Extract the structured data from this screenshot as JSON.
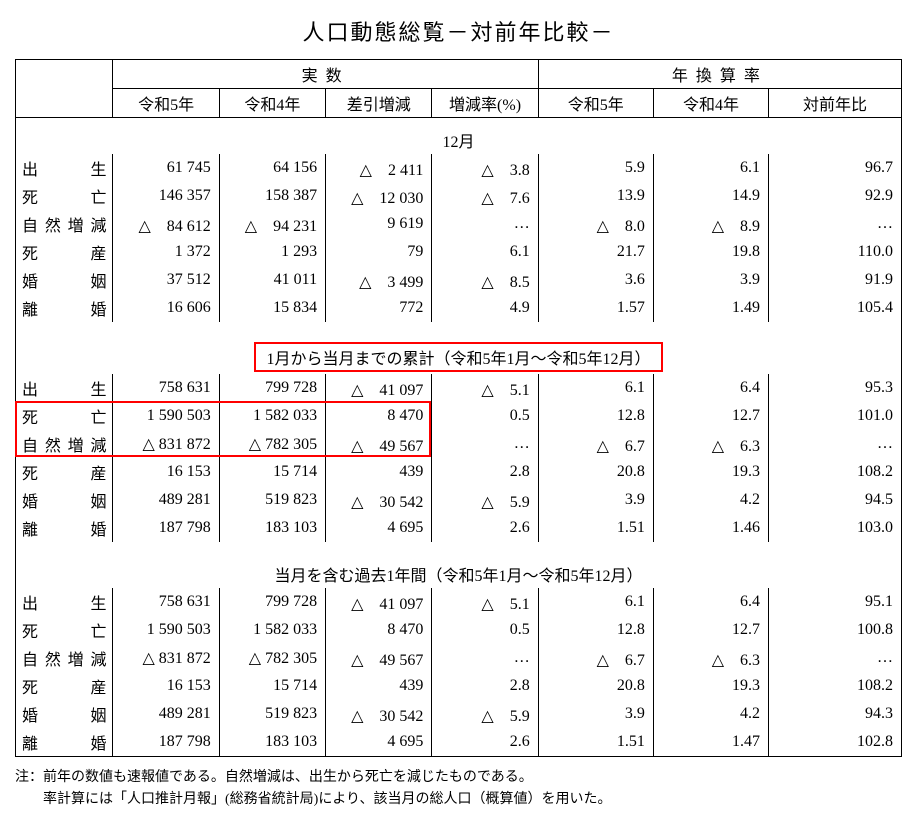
{
  "title": "人口動態総覧－対前年比較－",
  "headers": {
    "group_actual": "実数",
    "group_rate": "年換算率",
    "r5": "令和5年",
    "r4": "令和4年",
    "diff": "差引増減",
    "pct": "増減率(%)",
    "yoy": "対前年比"
  },
  "sections": [
    {
      "title": "12月",
      "rows": [
        {
          "label": "出生",
          "r5": "61 745",
          "r4": "64 156",
          "diff": "△　2 411",
          "pct": "△　3.8",
          "rate5": "5.9",
          "rate4": "6.1",
          "yoy": "96.7"
        },
        {
          "label": "死亡",
          "r5": "146 357",
          "r4": "158 387",
          "diff": "△　12 030",
          "pct": "△　7.6",
          "rate5": "13.9",
          "rate4": "14.9",
          "yoy": "92.9"
        },
        {
          "label": "自然増減",
          "r5": "△　84 612",
          "r4": "△　94 231",
          "diff": "9 619",
          "pct": "…",
          "rate5": "△　8.0",
          "rate4": "△　8.9",
          "yoy": "…"
        },
        {
          "label": "死産",
          "r5": "1 372",
          "r4": "1 293",
          "diff": "79",
          "pct": "6.1",
          "rate5": "21.7",
          "rate4": "19.8",
          "yoy": "110.0"
        },
        {
          "label": "婚姻",
          "r5": "37 512",
          "r4": "41 011",
          "diff": "△　3 499",
          "pct": "△　8.5",
          "rate5": "3.6",
          "rate4": "3.9",
          "yoy": "91.9"
        },
        {
          "label": "離婚",
          "r5": "16 606",
          "r4": "15 834",
          "diff": "772",
          "pct": "4.9",
          "rate5": "1.57",
          "rate4": "1.49",
          "yoy": "105.4"
        }
      ]
    },
    {
      "title": "1月から当月までの累計（令和5年1月～令和5年12月）",
      "highlight_title": true,
      "rows": [
        {
          "label": "出生",
          "r5": "758 631",
          "r4": "799 728",
          "diff": "△　41 097",
          "pct": "△　5.1",
          "rate5": "6.1",
          "rate4": "6.4",
          "yoy": "95.3"
        },
        {
          "label": "死亡",
          "r5": "1 590 503",
          "r4": "1 582 033",
          "diff": "8 470",
          "pct": "0.5",
          "rate5": "12.8",
          "rate4": "12.7",
          "yoy": "101.0",
          "highlight_row": true
        },
        {
          "label": "自然増減",
          "r5": "△ 831 872",
          "r4": "△ 782 305",
          "diff": "△　49 567",
          "pct": "…",
          "rate5": "△　6.7",
          "rate4": "△　6.3",
          "yoy": "…",
          "highlight_row": true
        },
        {
          "label": "死産",
          "r5": "16 153",
          "r4": "15 714",
          "diff": "439",
          "pct": "2.8",
          "rate5": "20.8",
          "rate4": "19.3",
          "yoy": "108.2"
        },
        {
          "label": "婚姻",
          "r5": "489 281",
          "r4": "519 823",
          "diff": "△　30 542",
          "pct": "△　5.9",
          "rate5": "3.9",
          "rate4": "4.2",
          "yoy": "94.5"
        },
        {
          "label": "離婚",
          "r5": "187 798",
          "r4": "183 103",
          "diff": "4 695",
          "pct": "2.6",
          "rate5": "1.51",
          "rate4": "1.46",
          "yoy": "103.0"
        }
      ]
    },
    {
      "title": "当月を含む過去1年間（令和5年1月～令和5年12月）",
      "rows": [
        {
          "label": "出生",
          "r5": "758 631",
          "r4": "799 728",
          "diff": "△　41 097",
          "pct": "△　5.1",
          "rate5": "6.1",
          "rate4": "6.4",
          "yoy": "95.1"
        },
        {
          "label": "死亡",
          "r5": "1 590 503",
          "r4": "1 582 033",
          "diff": "8 470",
          "pct": "0.5",
          "rate5": "12.8",
          "rate4": "12.7",
          "yoy": "100.8"
        },
        {
          "label": "自然増減",
          "r5": "△ 831 872",
          "r4": "△ 782 305",
          "diff": "△　49 567",
          "pct": "…",
          "rate5": "△　6.7",
          "rate4": "△　6.3",
          "yoy": "…"
        },
        {
          "label": "死産",
          "r5": "16 153",
          "r4": "15 714",
          "diff": "439",
          "pct": "2.8",
          "rate5": "20.8",
          "rate4": "19.3",
          "yoy": "108.2"
        },
        {
          "label": "婚姻",
          "r5": "489 281",
          "r4": "519 823",
          "diff": "△　30 542",
          "pct": "△　5.9",
          "rate5": "3.9",
          "rate4": "4.2",
          "yoy": "94.3"
        },
        {
          "label": "離婚",
          "r5": "187 798",
          "r4": "183 103",
          "diff": "4 695",
          "pct": "2.6",
          "rate5": "1.51",
          "rate4": "1.47",
          "yoy": "102.8"
        }
      ]
    }
  ],
  "notes": [
    "注：前年の数値も速報値である。自然増減は、出生から死亡を減じたものである。",
    "　　率計算には「人口推計月報」(総務省統計局)により、該当月の総人口（概算値）を用いた。"
  ],
  "colors": {
    "highlight": "#ff0000",
    "text": "#000000",
    "bg": "#ffffff"
  },
  "layout": {
    "col_widths_pct": [
      12,
      12,
      12,
      12,
      12,
      12,
      12,
      12
    ]
  }
}
